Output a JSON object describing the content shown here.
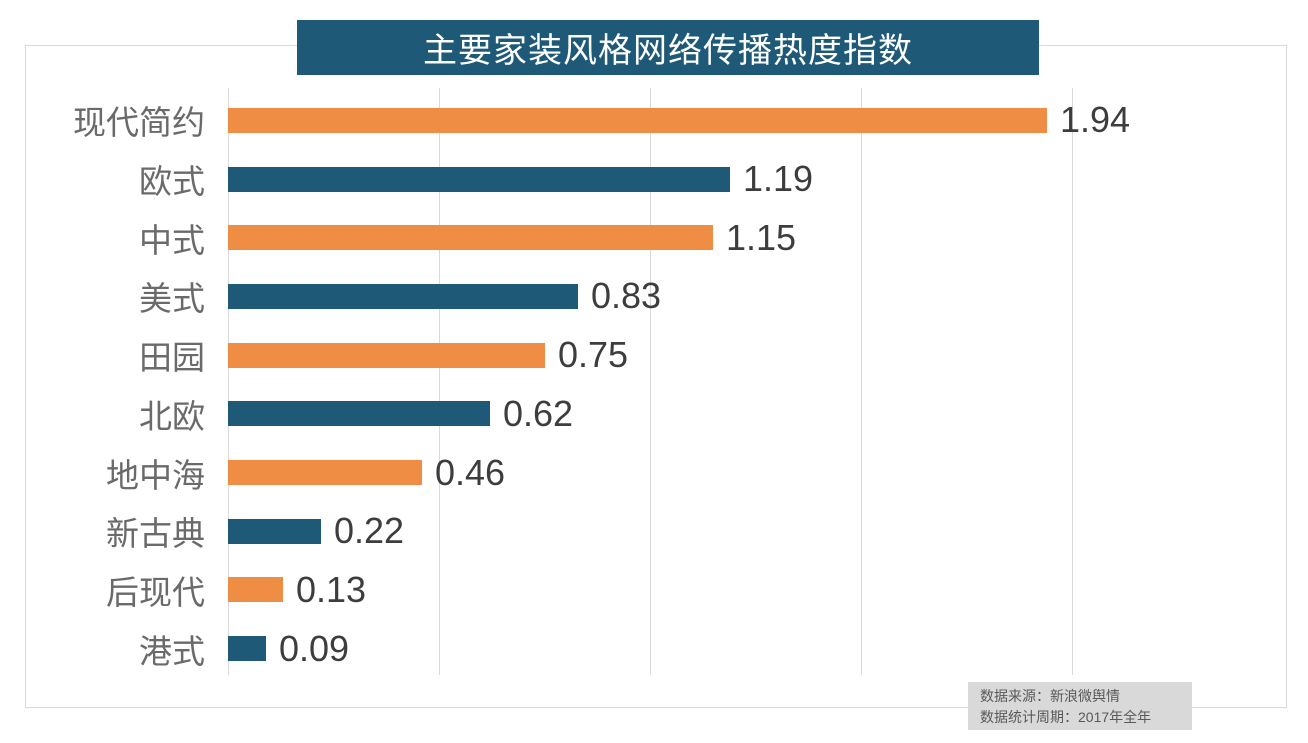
{
  "chart": {
    "title": "主要家装风格网络传播热度指数"
  },
  "chart_data": {
    "type": "bar",
    "orientation": "horizontal",
    "title": "主要家装风格网络传播热度指数",
    "categories": [
      "现代简约",
      "欧式",
      "中式",
      "美式",
      "田园",
      "北欧",
      "地中海",
      "新古典",
      "后现代",
      "港式"
    ],
    "values": [
      1.94,
      1.19,
      1.15,
      0.83,
      0.75,
      0.62,
      0.46,
      0.22,
      0.13,
      0.09
    ],
    "value_labels": [
      "1.94",
      "1.19",
      "1.15",
      "0.83",
      "0.75",
      "0.62",
      "0.46",
      "0.22",
      "0.13",
      "0.09"
    ],
    "xlabel": "",
    "ylabel": "",
    "xlim": [
      0,
      2.0
    ],
    "gridline_interval": 0.5,
    "grid": true,
    "legend": false,
    "bar_colors_alternating": [
      "#ef8d44",
      "#1e5977"
    ]
  },
  "source": {
    "line1": "数据来源：新浪微舆情",
    "line2": "数据统计周期：2017年全年"
  },
  "colors": {
    "title_bg": "#1e5977",
    "title_text": "#ffffff",
    "bar_orange": "#ef8d44",
    "bar_teal": "#1e5977",
    "gridline": "#d9d9d9",
    "frame_border": "#d9d9d9",
    "category_label": "#6a6a6a",
    "value_label": "#3d3d3d",
    "source_bg": "#d9d9d9",
    "source_text": "#595959"
  }
}
